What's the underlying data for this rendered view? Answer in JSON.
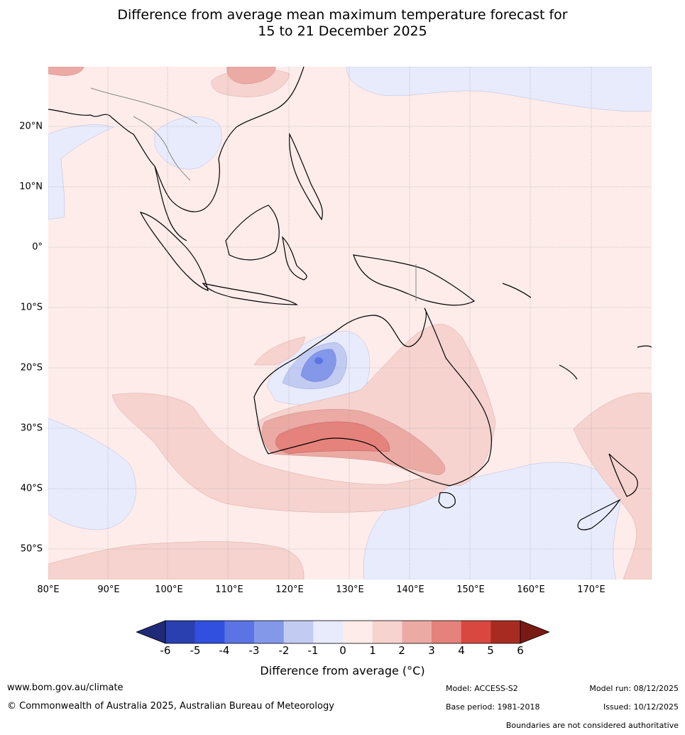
{
  "title_line1": "Difference from average mean maximum temperature forecast for",
  "title_line2": "15 to 21 December 2025",
  "lat_labels": [
    "20°N",
    "10°N",
    "0°",
    "10°S",
    "20°S",
    "30°S",
    "40°S",
    "50°S"
  ],
  "lon_labels": [
    "80°E",
    "90°E",
    "100°E",
    "110°E",
    "120°E",
    "130°E",
    "140°E",
    "150°E",
    "160°E",
    "170°E"
  ],
  "colorbar": {
    "ticks": [
      "-6",
      "-5",
      "-4",
      "-3",
      "-2",
      "-1",
      "0",
      "1",
      "2",
      "3",
      "4",
      "5",
      "6"
    ],
    "colors": [
      "#1f2a78",
      "#2a3fb0",
      "#3150e0",
      "#5a75e3",
      "#8498ea",
      "#c2cbf2",
      "#e8ebfc",
      "#fdecea",
      "#f6d3cf",
      "#ecaaa5",
      "#e5827b",
      "#d94840",
      "#a82b22",
      "#7a1a15"
    ],
    "label": "Difference from average (°C)"
  },
  "footer": {
    "website": "www.bom.gov.au/climate",
    "copyright": "© Commonwealth of Australia 2025, Australian Bureau of Meteorology",
    "model": "Model: ACCESS-S2",
    "base_period": "Base period: 1981-2018",
    "model_run": "Model run: 08/12/2025",
    "issued": "Issued: 10/12/2025",
    "disclaimer": "Boundaries are not considered authoritative"
  }
}
